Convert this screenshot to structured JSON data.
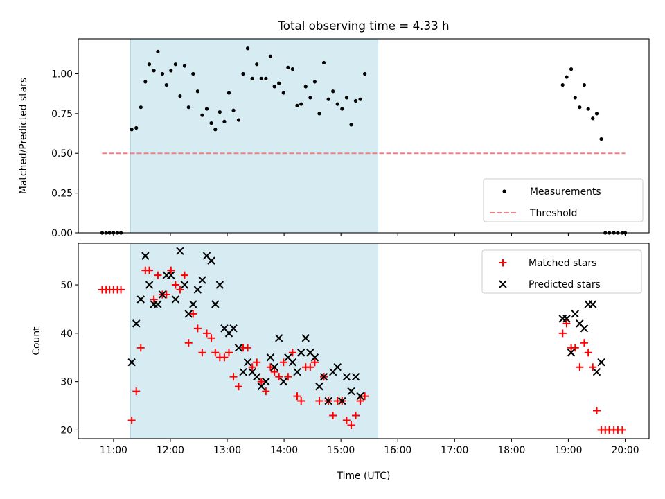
{
  "title": "Total observing time = 4.33 h",
  "xlabel": "Time (UTC)",
  "x_ticks": [
    "11:00",
    "12:00",
    "13:00",
    "14:00",
    "15:00",
    "16:00",
    "17:00",
    "18:00",
    "19:00",
    "20:00"
  ],
  "colors": {
    "measurement": "#000000",
    "threshold": "#f08080",
    "matched": "#ff0000",
    "predicted": "#000000",
    "span": "#add8e6"
  },
  "chart_data": [
    {
      "type": "scatter",
      "ylabel": "Matched/Predicted stars",
      "xlim": [
        10.38,
        20.42
      ],
      "ylim": [
        0,
        1.22
      ],
      "y_ticks": [
        "0.00",
        "0.25",
        "0.50",
        "0.75",
        "1.00"
      ],
      "span": [
        11.3,
        15.65
      ],
      "threshold": {
        "name": "Threshold",
        "value": 0.5,
        "x": [
          10.8,
          20.0
        ]
      },
      "legend": {
        "location": "lower right",
        "entries": [
          "Measurements",
          "Threshold"
        ]
      },
      "series": [
        {
          "name": "Measurements",
          "points": [
            [
              10.8,
              0
            ],
            [
              10.87,
              0
            ],
            [
              10.93,
              0
            ],
            [
              11.0,
              0
            ],
            [
              11.07,
              0
            ],
            [
              11.13,
              0
            ],
            [
              11.32,
              0.65
            ],
            [
              11.4,
              0.66
            ],
            [
              11.48,
              0.79
            ],
            [
              11.56,
              0.95
            ],
            [
              11.63,
              1.06
            ],
            [
              11.71,
              1.02
            ],
            [
              11.78,
              1.14
            ],
            [
              11.86,
              1.0
            ],
            [
              11.93,
              0.93
            ],
            [
              12.01,
              1.02
            ],
            [
              12.09,
              1.06
            ],
            [
              12.17,
              0.86
            ],
            [
              12.25,
              1.05
            ],
            [
              12.32,
              0.79
            ],
            [
              12.4,
              1.0
            ],
            [
              12.48,
              0.89
            ],
            [
              12.56,
              0.74
            ],
            [
              12.64,
              0.78
            ],
            [
              12.72,
              0.69
            ],
            [
              12.79,
              0.65
            ],
            [
              12.87,
              0.76
            ],
            [
              12.95,
              0.7
            ],
            [
              13.03,
              0.88
            ],
            [
              13.11,
              0.77
            ],
            [
              13.2,
              0.71
            ],
            [
              13.28,
              1.0
            ],
            [
              13.36,
              1.16
            ],
            [
              13.44,
              0.97
            ],
            [
              13.52,
              1.06
            ],
            [
              13.6,
              0.97
            ],
            [
              13.68,
              0.97
            ],
            [
              13.76,
              1.11
            ],
            [
              13.83,
              0.92
            ],
            [
              13.91,
              0.94
            ],
            [
              13.99,
              0.88
            ],
            [
              14.07,
              1.04
            ],
            [
              14.15,
              1.03
            ],
            [
              14.23,
              0.8
            ],
            [
              14.3,
              0.81
            ],
            [
              14.38,
              0.92
            ],
            [
              14.46,
              0.85
            ],
            [
              14.54,
              0.95
            ],
            [
              14.62,
              0.75
            ],
            [
              14.7,
              1.07
            ],
            [
              14.78,
              0.84
            ],
            [
              14.86,
              0.89
            ],
            [
              14.94,
              0.81
            ],
            [
              15.02,
              0.78
            ],
            [
              15.1,
              0.85
            ],
            [
              15.18,
              0.68
            ],
            [
              15.26,
              0.83
            ],
            [
              15.34,
              0.84
            ],
            [
              15.42,
              1.0
            ],
            [
              18.9,
              0.93
            ],
            [
              18.97,
              0.98
            ],
            [
              19.05,
              1.03
            ],
            [
              19.12,
              0.85
            ],
            [
              19.2,
              0.79
            ],
            [
              19.28,
              0.93
            ],
            [
              19.35,
              0.78
            ],
            [
              19.43,
              0.72
            ],
            [
              19.5,
              0.75
            ],
            [
              19.58,
              0.59
            ],
            [
              19.65,
              0
            ],
            [
              19.72,
              0
            ],
            [
              19.8,
              0
            ],
            [
              19.87,
              0
            ],
            [
              19.95,
              0
            ],
            [
              20.0,
              0
            ]
          ]
        }
      ]
    },
    {
      "type": "scatter",
      "ylabel": "Count",
      "xlim": [
        10.38,
        20.42
      ],
      "ylim": [
        18.2,
        58.6
      ],
      "y_ticks": [
        "20",
        "30",
        "40",
        "50"
      ],
      "span": [
        11.3,
        15.65
      ],
      "legend": {
        "location": "upper right",
        "entries": [
          "Matched stars",
          "Predicted stars"
        ]
      },
      "series": [
        {
          "name": "Matched stars",
          "marker": "plus",
          "points": [
            [
              10.8,
              49
            ],
            [
              10.87,
              49
            ],
            [
              10.93,
              49
            ],
            [
              11.0,
              49
            ],
            [
              11.07,
              49
            ],
            [
              11.13,
              49
            ],
            [
              11.32,
              22
            ],
            [
              11.4,
              28
            ],
            [
              11.48,
              37
            ],
            [
              11.56,
              53
            ],
            [
              11.63,
              53
            ],
            [
              11.71,
              47
            ],
            [
              11.78,
              52
            ],
            [
              11.86,
              48
            ],
            [
              11.93,
              48
            ],
            [
              12.01,
              53
            ],
            [
              12.09,
              50
            ],
            [
              12.17,
              49
            ],
            [
              12.25,
              52
            ],
            [
              12.32,
              38
            ],
            [
              12.4,
              44
            ],
            [
              12.48,
              41
            ],
            [
              12.56,
              36
            ],
            [
              12.64,
              40
            ],
            [
              12.72,
              39
            ],
            [
              12.79,
              36
            ],
            [
              12.87,
              35
            ],
            [
              12.95,
              35
            ],
            [
              13.03,
              36
            ],
            [
              13.11,
              31
            ],
            [
              13.2,
              29
            ],
            [
              13.28,
              37
            ],
            [
              13.36,
              37
            ],
            [
              13.44,
              33
            ],
            [
              13.52,
              34
            ],
            [
              13.6,
              30
            ],
            [
              13.68,
              28
            ],
            [
              13.76,
              33
            ],
            [
              13.83,
              32
            ],
            [
              13.91,
              31
            ],
            [
              13.99,
              34
            ],
            [
              14.07,
              31
            ],
            [
              14.15,
              36
            ],
            [
              14.23,
              27
            ],
            [
              14.3,
              26
            ],
            [
              14.38,
              33
            ],
            [
              14.46,
              33
            ],
            [
              14.54,
              34
            ],
            [
              14.62,
              26
            ],
            [
              14.7,
              31
            ],
            [
              14.78,
              26
            ],
            [
              14.86,
              23
            ],
            [
              14.94,
              26
            ],
            [
              15.02,
              26
            ],
            [
              15.1,
              22
            ],
            [
              15.18,
              21
            ],
            [
              15.26,
              23
            ],
            [
              15.34,
              26
            ],
            [
              15.42,
              27
            ],
            [
              18.9,
              40
            ],
            [
              18.97,
              42
            ],
            [
              19.05,
              37
            ],
            [
              19.12,
              37
            ],
            [
              19.2,
              33
            ],
            [
              19.28,
              38
            ],
            [
              19.35,
              36
            ],
            [
              19.43,
              33
            ],
            [
              19.5,
              24
            ],
            [
              19.58,
              20
            ],
            [
              19.65,
              20
            ],
            [
              19.72,
              20
            ],
            [
              19.8,
              20
            ],
            [
              19.87,
              20
            ],
            [
              19.95,
              20
            ]
          ]
        },
        {
          "name": "Predicted stars",
          "marker": "x",
          "points": [
            [
              11.32,
              34
            ],
            [
              11.4,
              42
            ],
            [
              11.48,
              47
            ],
            [
              11.56,
              56
            ],
            [
              11.63,
              50
            ],
            [
              11.71,
              46
            ],
            [
              11.78,
              46
            ],
            [
              11.86,
              48
            ],
            [
              11.93,
              52
            ],
            [
              12.01,
              52
            ],
            [
              12.09,
              47
            ],
            [
              12.17,
              57
            ],
            [
              12.25,
              50
            ],
            [
              12.32,
              44
            ],
            [
              12.4,
              46
            ],
            [
              12.48,
              49
            ],
            [
              12.56,
              51
            ],
            [
              12.64,
              56
            ],
            [
              12.72,
              55
            ],
            [
              12.79,
              46
            ],
            [
              12.87,
              50
            ],
            [
              12.95,
              41
            ],
            [
              13.03,
              40
            ],
            [
              13.11,
              41
            ],
            [
              13.2,
              37
            ],
            [
              13.28,
              32
            ],
            [
              13.36,
              34
            ],
            [
              13.44,
              32
            ],
            [
              13.52,
              31
            ],
            [
              13.6,
              29
            ],
            [
              13.68,
              30
            ],
            [
              13.76,
              35
            ],
            [
              13.83,
              33
            ],
            [
              13.91,
              39
            ],
            [
              13.99,
              30
            ],
            [
              14.07,
              35
            ],
            [
              14.15,
              34
            ],
            [
              14.23,
              32
            ],
            [
              14.3,
              36
            ],
            [
              14.38,
              39
            ],
            [
              14.46,
              36
            ],
            [
              14.54,
              35
            ],
            [
              14.62,
              29
            ],
            [
              14.7,
              31
            ],
            [
              14.78,
              26
            ],
            [
              14.86,
              32
            ],
            [
              14.94,
              33
            ],
            [
              15.02,
              26
            ],
            [
              15.1,
              31
            ],
            [
              15.18,
              28
            ],
            [
              15.26,
              31
            ],
            [
              15.34,
              27
            ],
            [
              18.9,
              43
            ],
            [
              18.97,
              43
            ],
            [
              19.05,
              36
            ],
            [
              19.12,
              44
            ],
            [
              19.2,
              42
            ],
            [
              19.28,
              41
            ],
            [
              19.35,
              46
            ],
            [
              19.43,
              46
            ],
            [
              19.5,
              32
            ],
            [
              19.58,
              34
            ]
          ]
        }
      ]
    }
  ]
}
